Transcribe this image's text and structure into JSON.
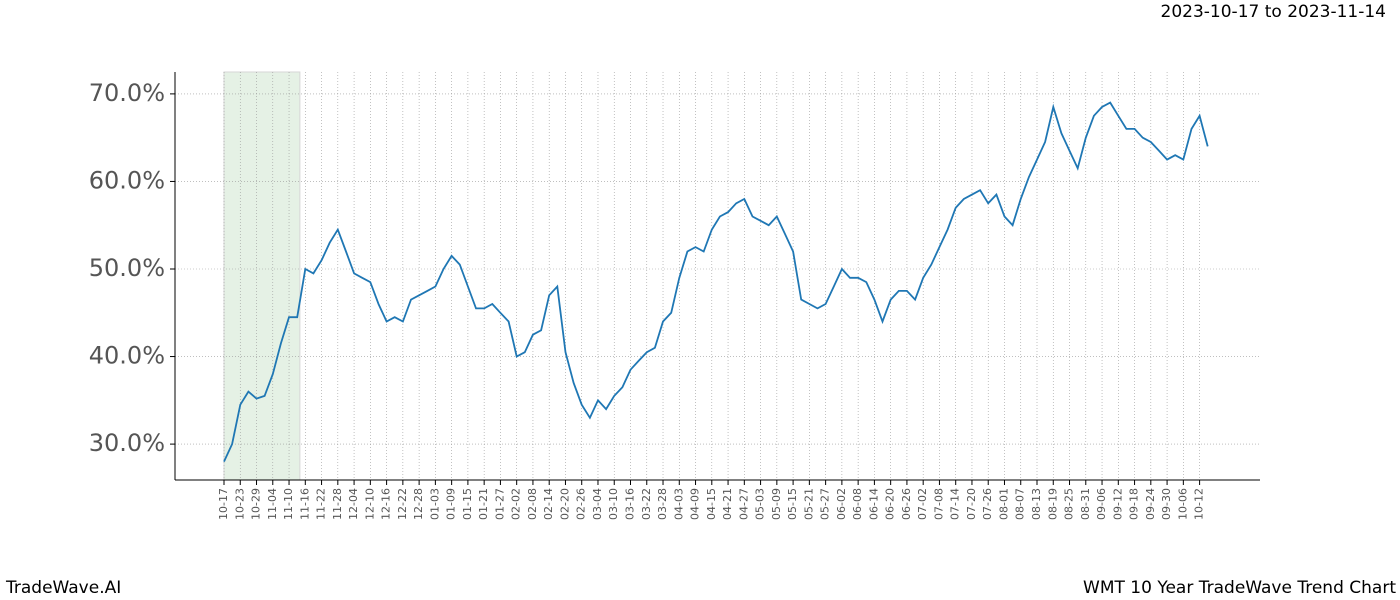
{
  "chart_data": {
    "type": "line",
    "title": "2023-10-17 to 2023-11-14",
    "footer_left": "TradeWave.AI",
    "footer_right": "WMT 10 Year TradeWave Trend Chart",
    "categories": [
      "10-17",
      null,
      "10-23",
      null,
      "10-29",
      null,
      "11-04",
      null,
      "11-10",
      null,
      "11-16",
      null,
      "11-22",
      null,
      "11-28",
      null,
      "12-04",
      null,
      "12-10",
      null,
      "12-16",
      null,
      "12-22",
      null,
      "12-28",
      null,
      "01-03",
      null,
      "01-09",
      null,
      "01-15",
      null,
      "01-21",
      null,
      "01-27",
      null,
      "02-02",
      null,
      "02-08",
      null,
      "02-14",
      null,
      "02-20",
      null,
      "02-26",
      null,
      "03-04",
      null,
      "03-10",
      null,
      "03-16",
      null,
      "03-22",
      null,
      "03-28",
      null,
      "04-03",
      null,
      "04-09",
      null,
      "04-15",
      null,
      "04-21",
      null,
      "04-27",
      null,
      "05-03",
      null,
      "05-09",
      null,
      "05-15",
      null,
      "05-21",
      null,
      "05-27",
      null,
      "06-02",
      null,
      "06-08",
      null,
      "06-14",
      null,
      "06-20",
      null,
      "06-26",
      null,
      "07-02",
      null,
      "07-08",
      null,
      "07-14",
      null,
      "07-20",
      null,
      "07-26",
      null,
      "08-01",
      null,
      "08-07",
      null,
      "08-13",
      null,
      "08-19",
      null,
      "08-25",
      null,
      "08-31",
      null,
      "09-06",
      null,
      "09-12",
      null,
      "09-18",
      null,
      "09-24",
      null,
      "09-30",
      null,
      "10-06",
      null,
      "10-12",
      null
    ],
    "series": [
      {
        "color": "#1f77b4",
        "values": [
          28,
          30,
          34.5,
          36,
          35.2,
          35.5,
          38,
          41.5,
          44.5,
          44.5,
          50,
          49.5,
          51,
          53,
          54.5,
          52,
          49.5,
          49,
          48.5,
          46,
          44,
          44.5,
          44,
          46.5,
          47,
          47.5,
          48,
          50,
          51.5,
          50.5,
          48,
          45.5,
          45.5,
          46,
          45,
          44,
          40,
          40.5,
          42.5,
          43,
          47,
          48,
          40.5,
          37,
          34.5,
          33,
          35,
          34,
          35.5,
          36.5,
          38.5,
          39.5,
          40.5,
          41,
          44,
          45,
          49,
          52,
          52.5,
          52,
          54.5,
          56,
          56.5,
          57.5,
          58,
          56,
          55.5,
          55,
          56,
          54,
          52,
          46.5,
          46,
          45.5,
          46,
          48,
          50,
          49,
          49,
          48.5,
          46.5,
          44,
          46.5,
          47.5,
          47.5,
          46.5,
          49,
          50.5,
          52.5,
          54.5,
          57,
          58,
          58.5,
          59,
          57.5,
          58.5,
          56,
          55,
          58,
          60.5,
          62.5,
          64.5,
          68.5,
          65.5,
          63.5,
          61.5,
          65,
          67.5,
          68.5,
          69,
          67.5,
          66,
          66,
          65,
          64.5,
          63.5,
          62.5,
          63,
          62.5,
          66,
          67.5,
          64
        ]
      }
    ],
    "ylim": [
      25.9,
      72.5
    ],
    "yticks": [
      {
        "value": 30,
        "label": "30.0%"
      },
      {
        "value": 40,
        "label": "40.0%"
      },
      {
        "value": 50,
        "label": "50.0%"
      },
      {
        "value": 60,
        "label": "60.0%"
      },
      {
        "value": 70,
        "label": "70.0%"
      }
    ],
    "grid": true
  }
}
